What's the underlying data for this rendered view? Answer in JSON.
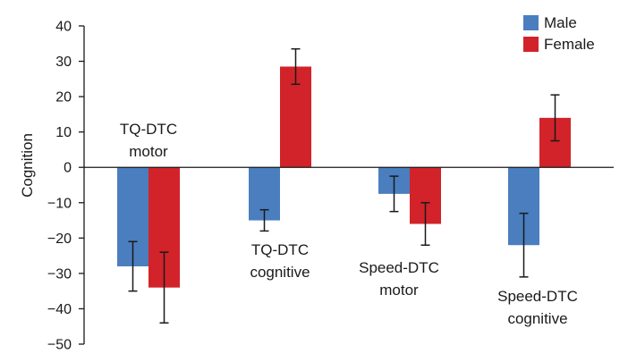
{
  "chart_data": {
    "type": "bar",
    "title": "",
    "xlabel": "",
    "ylabel": "Cognition",
    "ylim": [
      -50,
      40
    ],
    "yticks": [
      40,
      30,
      20,
      10,
      0,
      -10,
      -20,
      -30,
      -40,
      -50
    ],
    "ytick_labels": [
      "40",
      "30",
      "20",
      "10",
      "0",
      "−10",
      "−20",
      "−30",
      "−40",
      "−50"
    ],
    "grid": false,
    "legend_position": "top-right",
    "categories": [
      {
        "line1": "TQ-DTC",
        "line2": "motor"
      },
      {
        "line1": "TQ-DTC",
        "line2": "cognitive"
      },
      {
        "line1": "Speed-DTC",
        "line2": "motor"
      },
      {
        "line1": "Speed-DTC",
        "line2": "cognitive"
      }
    ],
    "series": [
      {
        "name": "Male",
        "color": "#4a7ebf",
        "values": [
          -28,
          -15,
          -7.5,
          -22
        ],
        "error": [
          7,
          3,
          5,
          9
        ]
      },
      {
        "name": "Female",
        "color": "#d2232a",
        "values": [
          -34,
          28.5,
          -16,
          14
        ],
        "error": [
          10,
          5,
          6,
          6.5
        ]
      }
    ]
  }
}
